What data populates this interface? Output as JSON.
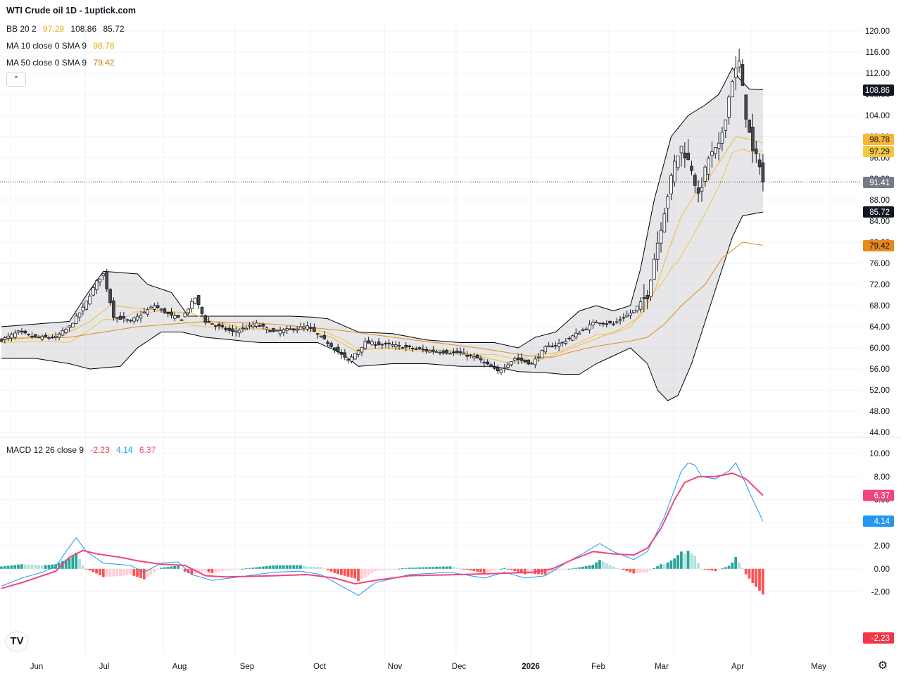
{
  "header": {
    "title": "WTI Crude oil  1D - 1uptick.com"
  },
  "legends": {
    "bb": {
      "label": "BB 20 2",
      "basis": "97.29",
      "upper": "108.86",
      "lower": "85.72"
    },
    "ma10": {
      "label": "MA 10 close 0 SMA 9",
      "value": "98.78"
    },
    "ma50": {
      "label": "MA 50 close 0 SMA 9",
      "value": "79.42"
    },
    "macd": {
      "label": "MACD 12 26 close 9",
      "hist": "-2.23",
      "macd": "4.14",
      "signal": "6.37"
    }
  },
  "colors": {
    "up_candle": "#ffffff",
    "down_candle": "#4a4a4a",
    "bb_band": "#000000",
    "bb_basis": "#f2c14e",
    "ma10": "#f0b93b",
    "ma50": "#e08a1e",
    "macd_line": "#2196f3",
    "signal_line": "#f0457f",
    "hist_up_strong": "#26a69a",
    "hist_up_weak": "#b2dfdb",
    "hist_down_strong": "#ff5252",
    "hist_down_weak": "#ffcdd2"
  },
  "chart_data": [
    {
      "type": "candlestick",
      "title": "WTI Crude oil  1D - 1uptick.com",
      "ylim": [
        44,
        120
      ],
      "y_ticks": [
        "120.00",
        "116.00",
        "112.00",
        "108.00",
        "104.00",
        "100.00",
        "96.00",
        "92.00",
        "88.00",
        "84.00",
        "80.00",
        "76.00",
        "72.00",
        "68.00",
        "64.00",
        "60.00",
        "56.00",
        "52.00",
        "48.00",
        "44.00"
      ],
      "x_ticks": [
        "Jun",
        "Jul",
        "Aug",
        "Sep",
        "Oct",
        "Nov",
        "Dec",
        "2026",
        "Feb",
        "Mar",
        "Apr",
        "May"
      ],
      "last_price": "91.41",
      "price_badges": [
        {
          "name": "bb-upper",
          "value": "108.86"
        },
        {
          "name": "ma10",
          "value": "98.78"
        },
        {
          "name": "bb-basis",
          "value": "97.29"
        },
        {
          "name": "last",
          "value": "91.41"
        },
        {
          "name": "bb-lower",
          "value": "85.72"
        },
        {
          "name": "ma50",
          "value": "79.42"
        }
      ],
      "anchors": [
        [
          0,
          61.5
        ],
        [
          5,
          63
        ],
        [
          10,
          62
        ],
        [
          16,
          62
        ],
        [
          20,
          64
        ],
        [
          24,
          67.5
        ],
        [
          28,
          72.5
        ],
        [
          30,
          74
        ],
        [
          33,
          66
        ],
        [
          38,
          65
        ],
        [
          45,
          68
        ],
        [
          50,
          66
        ],
        [
          53,
          65.5
        ],
        [
          57,
          69.5
        ],
        [
          60,
          65
        ],
        [
          68,
          63
        ],
        [
          75,
          64.5
        ],
        [
          80,
          63
        ],
        [
          85,
          63.5
        ],
        [
          90,
          64
        ],
        [
          96,
          61
        ],
        [
          102,
          57.5
        ],
        [
          107,
          61
        ],
        [
          115,
          60.5
        ],
        [
          125,
          59.5
        ],
        [
          135,
          59
        ],
        [
          140,
          58
        ],
        [
          146,
          55.5
        ],
        [
          151,
          58
        ],
        [
          156,
          57
        ],
        [
          160,
          60
        ],
        [
          165,
          61
        ],
        [
          170,
          63
        ],
        [
          175,
          65
        ],
        [
          180,
          64.5
        ],
        [
          186,
          67
        ],
        [
          190,
          70
        ],
        [
          192,
          77
        ],
        [
          195,
          86
        ],
        [
          198,
          95
        ],
        [
          200,
          98
        ],
        [
          203,
          94
        ],
        [
          205,
          88.5
        ],
        [
          208,
          96
        ],
        [
          211,
          98
        ],
        [
          213,
          104
        ],
        [
          215,
          111
        ],
        [
          217,
          114
        ],
        [
          219,
          104
        ],
        [
          221,
          97
        ],
        [
          223,
          95
        ],
        [
          224,
          91.41
        ]
      ],
      "bb_upper_anchors": [
        [
          0,
          64
        ],
        [
          10,
          64.5
        ],
        [
          20,
          65
        ],
        [
          25,
          70
        ],
        [
          30,
          74.5
        ],
        [
          40,
          74
        ],
        [
          43,
          72
        ],
        [
          50,
          70.5
        ],
        [
          55,
          66
        ],
        [
          60,
          66
        ],
        [
          67,
          66
        ],
        [
          75,
          66
        ],
        [
          80,
          66
        ],
        [
          85,
          66
        ],
        [
          92,
          65.8
        ],
        [
          96,
          65.5
        ],
        [
          105,
          63
        ],
        [
          115,
          62.7
        ],
        [
          125,
          61.5
        ],
        [
          135,
          61
        ],
        [
          140,
          61
        ],
        [
          145,
          61
        ],
        [
          152,
          60
        ],
        [
          157,
          62
        ],
        [
          163,
          63
        ],
        [
          170,
          67
        ],
        [
          175,
          68
        ],
        [
          180,
          67
        ],
        [
          185,
          68
        ],
        [
          188,
          75
        ],
        [
          192,
          88
        ],
        [
          197,
          100
        ],
        [
          202,
          104
        ],
        [
          207,
          106
        ],
        [
          211,
          108
        ],
        [
          215,
          113
        ],
        [
          217,
          111
        ],
        [
          220,
          109
        ],
        [
          224,
          108.86
        ]
      ],
      "bb_lower_anchors": [
        [
          0,
          58
        ],
        [
          10,
          58
        ],
        [
          20,
          57
        ],
        [
          26,
          56
        ],
        [
          35,
          56.5
        ],
        [
          40,
          60
        ],
        [
          47,
          63
        ],
        [
          53,
          63
        ],
        [
          60,
          62
        ],
        [
          68,
          61.5
        ],
        [
          76,
          61
        ],
        [
          85,
          61
        ],
        [
          93,
          61
        ],
        [
          100,
          59
        ],
        [
          105,
          56.5
        ],
        [
          115,
          57
        ],
        [
          125,
          57
        ],
        [
          135,
          56.5
        ],
        [
          145,
          56.5
        ],
        [
          152,
          55.5
        ],
        [
          160,
          55.3
        ],
        [
          165,
          55
        ],
        [
          170,
          55
        ],
        [
          175,
          57
        ],
        [
          180,
          58.5
        ],
        [
          185,
          60
        ],
        [
          190,
          57
        ],
        [
          193,
          52
        ],
        [
          196,
          50
        ],
        [
          199,
          51
        ],
        [
          203,
          57
        ],
        [
          207,
          65
        ],
        [
          211,
          73
        ],
        [
          215,
          81
        ],
        [
          218,
          85
        ],
        [
          222,
          85.5
        ],
        [
          224,
          85.72
        ]
      ],
      "ma10_anchors": [
        [
          0,
          61.5
        ],
        [
          10,
          62
        ],
        [
          20,
          63
        ],
        [
          26,
          65
        ],
        [
          32,
          68
        ],
        [
          40,
          67.5
        ],
        [
          48,
          67
        ],
        [
          56,
          66.5
        ],
        [
          62,
          65
        ],
        [
          70,
          64
        ],
        [
          80,
          63.5
        ],
        [
          90,
          63.5
        ],
        [
          97,
          62
        ],
        [
          104,
          59.5
        ],
        [
          112,
          60
        ],
        [
          122,
          59.8
        ],
        [
          132,
          59.5
        ],
        [
          142,
          58.2
        ],
        [
          150,
          57
        ],
        [
          158,
          57.6
        ],
        [
          166,
          59.5
        ],
        [
          174,
          61.5
        ],
        [
          182,
          63.5
        ],
        [
          188,
          66
        ],
        [
          192,
          70.5
        ],
        [
          196,
          78
        ],
        [
          200,
          85
        ],
        [
          204,
          89
        ],
        [
          208,
          92
        ],
        [
          212,
          96
        ],
        [
          216,
          100
        ],
        [
          220,
          99.5
        ],
        [
          224,
          98.78
        ]
      ],
      "ma50_anchors": [
        [
          0,
          61.8
        ],
        [
          20,
          62
        ],
        [
          40,
          64
        ],
        [
          60,
          65
        ],
        [
          80,
          64.5
        ],
        [
          100,
          63.3
        ],
        [
          120,
          61.6
        ],
        [
          140,
          60
        ],
        [
          155,
          58.5
        ],
        [
          162,
          58.2
        ],
        [
          168,
          59.3
        ],
        [
          175,
          60.3
        ],
        [
          185,
          61.3
        ],
        [
          190,
          62
        ],
        [
          195,
          64.5
        ],
        [
          200,
          68
        ],
        [
          207,
          72
        ],
        [
          212,
          77
        ],
        [
          218,
          80
        ],
        [
          224,
          79.42
        ]
      ]
    },
    {
      "type": "line",
      "title": "MACD 12 26 close 9",
      "ylim": [
        -6,
        10.5
      ],
      "y_ticks": [
        "10.00",
        "8.00",
        "6.00",
        "4.00",
        "2.00",
        "0.00",
        "-2.00"
      ],
      "series": [
        {
          "name": "MACD",
          "last": "4.14",
          "anchors": [
            [
              0,
              -1.5
            ],
            [
              6,
              -0.8
            ],
            [
              12,
              -0.3
            ],
            [
              16,
              0.2
            ],
            [
              19,
              1.5
            ],
            [
              22,
              2.7
            ],
            [
              25,
              1.5
            ],
            [
              30,
              0.5
            ],
            [
              38,
              0.3
            ],
            [
              42,
              -0.3
            ],
            [
              47,
              0.5
            ],
            [
              52,
              0.6
            ],
            [
              56,
              -0.5
            ],
            [
              62,
              -1.0
            ],
            [
              70,
              -0.7
            ],
            [
              80,
              -0.3
            ],
            [
              88,
              -0.2
            ],
            [
              94,
              -0.5
            ],
            [
              100,
              -1.5
            ],
            [
              105,
              -2.3
            ],
            [
              110,
              -1.2
            ],
            [
              120,
              -0.5
            ],
            [
              132,
              -0.3
            ],
            [
              142,
              -0.8
            ],
            [
              148,
              -0.3
            ],
            [
              154,
              -0.8
            ],
            [
              160,
              -0.6
            ],
            [
              166,
              0.5
            ],
            [
              172,
              1.5
            ],
            [
              176,
              2.2
            ],
            [
              180,
              1.5
            ],
            [
              186,
              0.8
            ],
            [
              190,
              1.5
            ],
            [
              195,
              4.5
            ],
            [
              200,
              8.5
            ],
            [
              202,
              9.2
            ],
            [
              204,
              9.0
            ],
            [
              206,
              8.0
            ],
            [
              210,
              7.8
            ],
            [
              214,
              8.5
            ],
            [
              216,
              9.2
            ],
            [
              218,
              8.0
            ],
            [
              221,
              6.0
            ],
            [
              224,
              4.14
            ]
          ]
        },
        {
          "name": "Signal",
          "last": "6.37",
          "anchors": [
            [
              0,
              -1.7
            ],
            [
              6,
              -1.2
            ],
            [
              12,
              -0.6
            ],
            [
              16,
              -0.2
            ],
            [
              20,
              1.0
            ],
            [
              24,
              1.6
            ],
            [
              28,
              1.3
            ],
            [
              35,
              1.0
            ],
            [
              40,
              0.7
            ],
            [
              47,
              0.4
            ],
            [
              54,
              0.3
            ],
            [
              60,
              -0.6
            ],
            [
              66,
              -0.7
            ],
            [
              80,
              -0.6
            ],
            [
              90,
              -0.5
            ],
            [
              98,
              -0.8
            ],
            [
              104,
              -1.3
            ],
            [
              110,
              -1.0
            ],
            [
              120,
              -0.6
            ],
            [
              134,
              -0.5
            ],
            [
              146,
              -0.4
            ],
            [
              156,
              -0.3
            ],
            [
              162,
              0.0
            ],
            [
              168,
              0.8
            ],
            [
              174,
              1.5
            ],
            [
              180,
              1.3
            ],
            [
              186,
              1.2
            ],
            [
              190,
              1.8
            ],
            [
              194,
              3.5
            ],
            [
              198,
              6.0
            ],
            [
              201,
              7.5
            ],
            [
              205,
              8.0
            ],
            [
              210,
              8.0
            ],
            [
              215,
              8.3
            ],
            [
              219,
              7.8
            ],
            [
              224,
              6.37
            ]
          ]
        }
      ],
      "histogram_last": "-2.23",
      "x_ticks": [
        "Jun",
        "Jul",
        "Aug",
        "Sep",
        "Oct",
        "Nov",
        "Dec",
        "2026",
        "Feb",
        "Mar",
        "Apr",
        "May"
      ]
    }
  ]
}
